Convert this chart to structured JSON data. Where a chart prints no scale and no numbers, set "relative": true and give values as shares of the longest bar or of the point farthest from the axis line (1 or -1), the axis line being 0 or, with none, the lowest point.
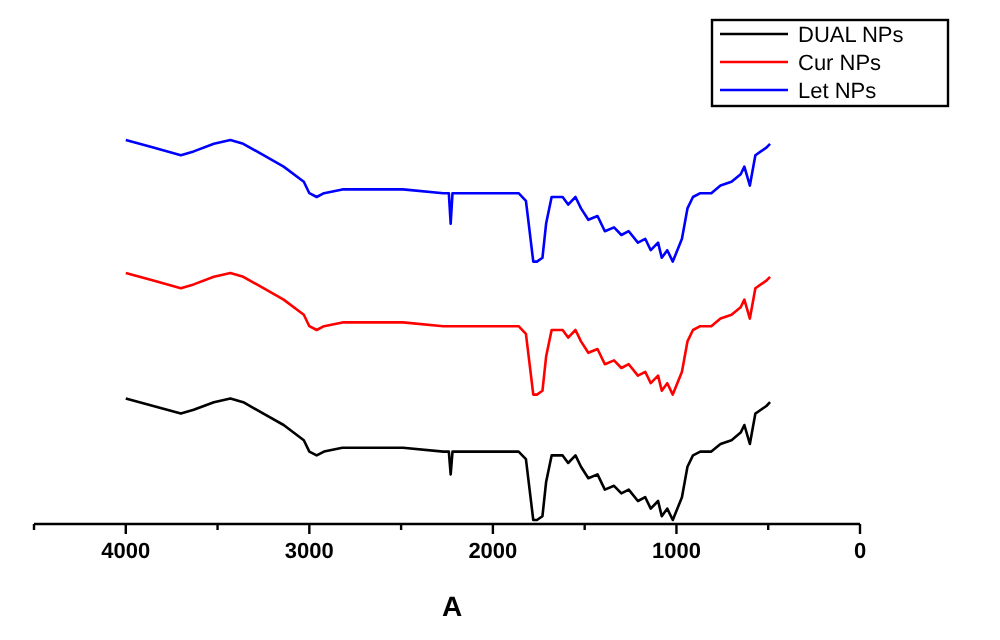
{
  "chart_data": {
    "type": "line",
    "xlabel": "A",
    "relative": true,
    "legend": "top right",
    "grid": false,
    "line_style": "solid",
    "marker": "none",
    "tick_labels": "x",
    "xlim": [
      4500,
      0
    ],
    "xticks": [
      {
        "value": 4500,
        "label": null
      },
      4000,
      {
        "value": 3500,
        "label": null
      },
      3000,
      {
        "value": 2500,
        "label": null
      },
      2000,
      {
        "value": 1500,
        "label": null
      },
      1000,
      {
        "value": 500,
        "label": null
      },
      0
    ],
    "x": [
      4000,
      3850,
      3700,
      3630,
      3520,
      3430,
      3360,
      3250,
      3140,
      3030,
      3000,
      2960,
      2920,
      2820,
      2490,
      2270,
      2240,
      2230,
      2220,
      2170,
      1860,
      1820,
      1800,
      1780,
      1760,
      1730,
      1710,
      1680,
      1620,
      1590,
      1550,
      1520,
      1480,
      1430,
      1390,
      1340,
      1300,
      1260,
      1210,
      1170,
      1140,
      1100,
      1080,
      1050,
      1020,
      970,
      940,
      910,
      870,
      810,
      760,
      700,
      650,
      630,
      600,
      570,
      540,
      510,
      490
    ],
    "series": [
      {
        "name": "DUAL NPs",
        "color": "#000000",
        "values": [
          0.32,
          0.3,
          0.28,
          0.29,
          0.31,
          0.32,
          0.31,
          0.28,
          0.25,
          0.21,
          0.18,
          0.17,
          0.18,
          0.19,
          0.19,
          0.18,
          0.18,
          0.12,
          0.18,
          0.18,
          0.18,
          0.16,
          0.08,
          0.0,
          0.0,
          0.01,
          0.1,
          0.17,
          0.17,
          0.15,
          0.17,
          0.14,
          0.11,
          0.12,
          0.08,
          0.09,
          0.07,
          0.08,
          0.05,
          0.06,
          0.03,
          0.05,
          0.01,
          0.03,
          0.0,
          0.06,
          0.14,
          0.17,
          0.18,
          0.18,
          0.2,
          0.21,
          0.23,
          0.25,
          0.2,
          0.28,
          0.29,
          0.3,
          0.31
        ]
      },
      {
        "name": "Cur NPs",
        "color": "#ff0000",
        "values": [
          0.65,
          0.63,
          0.61,
          0.62,
          0.64,
          0.65,
          0.64,
          0.61,
          0.58,
          0.54,
          0.51,
          0.5,
          0.51,
          0.52,
          0.52,
          0.51,
          0.51,
          0.51,
          0.51,
          0.51,
          0.51,
          0.49,
          0.41,
          0.33,
          0.33,
          0.34,
          0.43,
          0.5,
          0.5,
          0.48,
          0.5,
          0.47,
          0.44,
          0.45,
          0.41,
          0.42,
          0.4,
          0.41,
          0.38,
          0.39,
          0.36,
          0.38,
          0.34,
          0.36,
          0.33,
          0.39,
          0.47,
          0.5,
          0.51,
          0.51,
          0.53,
          0.54,
          0.56,
          0.58,
          0.53,
          0.61,
          0.62,
          0.63,
          0.64
        ]
      },
      {
        "name": "Let NPs",
        "color": "#0000ff",
        "values": [
          1.0,
          0.98,
          0.96,
          0.97,
          0.99,
          1.0,
          0.99,
          0.96,
          0.93,
          0.89,
          0.86,
          0.85,
          0.86,
          0.87,
          0.87,
          0.86,
          0.86,
          0.78,
          0.86,
          0.86,
          0.86,
          0.84,
          0.76,
          0.68,
          0.68,
          0.69,
          0.78,
          0.85,
          0.85,
          0.83,
          0.85,
          0.82,
          0.79,
          0.8,
          0.76,
          0.77,
          0.75,
          0.76,
          0.73,
          0.74,
          0.71,
          0.73,
          0.69,
          0.71,
          0.68,
          0.74,
          0.82,
          0.85,
          0.86,
          0.86,
          0.88,
          0.89,
          0.91,
          0.93,
          0.88,
          0.96,
          0.97,
          0.98,
          0.99
        ]
      }
    ]
  }
}
